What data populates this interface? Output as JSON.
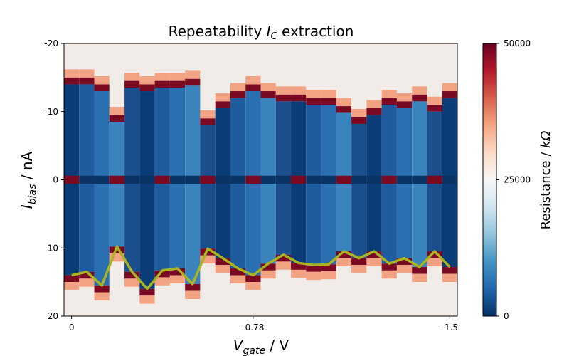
{
  "chart_data": {
    "type": "heatmap",
    "title": "Repeatability",
    "title_symbol": "I",
    "title_symbol_sub": "C",
    "title_suffix": "extraction",
    "xlabel_symbol": "V",
    "xlabel_sub": "gate",
    "xlabel_unit": "/ V",
    "ylabel_symbol": "I",
    "ylabel_sub": "bias",
    "ylabel_unit": "/ nA",
    "xtick_labels": [
      "0",
      "-0.78",
      "-1.5"
    ],
    "ytick_labels": [
      "-20",
      "-10",
      "0",
      "10",
      "20"
    ],
    "ytick_values": [
      -20,
      -10,
      0,
      10,
      20
    ],
    "ylim": [
      -20,
      20
    ],
    "colorbar": {
      "label_prefix": "Resistance /",
      "label_unit": "kΩ",
      "tick_labels": [
        "0",
        "25000",
        "50000"
      ],
      "tick_values": [
        0,
        25000,
        50000
      ],
      "range": [
        0,
        50000
      ],
      "colormap": "RdBu_r"
    },
    "line_color": "#a8b51e",
    "columns": [
      {
        "lo": -14.0,
        "hi": 14.0
      },
      {
        "lo": -14.0,
        "hi": 13.5
      },
      {
        "lo": -13.0,
        "hi": 15.5
      },
      {
        "lo": -8.5,
        "hi": 9.8
      },
      {
        "lo": -13.5,
        "hi": 13.5
      },
      {
        "lo": -13.0,
        "hi": 16.0
      },
      {
        "lo": -13.5,
        "hi": 13.3
      },
      {
        "lo": -13.5,
        "hi": 13.0
      },
      {
        "lo": -13.8,
        "hi": 15.3
      },
      {
        "lo": -8.0,
        "hi": 10.1
      },
      {
        "lo": -10.5,
        "hi": 11.5
      },
      {
        "lo": -12.0,
        "hi": 13.0
      },
      {
        "lo": -13.0,
        "hi": 14.0
      },
      {
        "lo": -12.0,
        "hi": 12.3
      },
      {
        "lo": -11.5,
        "hi": 11.0
      },
      {
        "lo": -11.5,
        "hi": 12.2
      },
      {
        "lo": -11.0,
        "hi": 12.5
      },
      {
        "lo": -11.0,
        "hi": 12.4
      },
      {
        "lo": -9.8,
        "hi": 10.5
      },
      {
        "lo": -8.2,
        "hi": 11.5
      },
      {
        "lo": -9.5,
        "hi": 10.5
      },
      {
        "lo": -11.0,
        "hi": 12.3
      },
      {
        "lo": -10.5,
        "hi": 11.5
      },
      {
        "lo": -11.5,
        "hi": 12.8
      },
      {
        "lo": -10.0,
        "hi": 10.5
      },
      {
        "lo": -12.0,
        "hi": 12.8
      }
    ]
  }
}
